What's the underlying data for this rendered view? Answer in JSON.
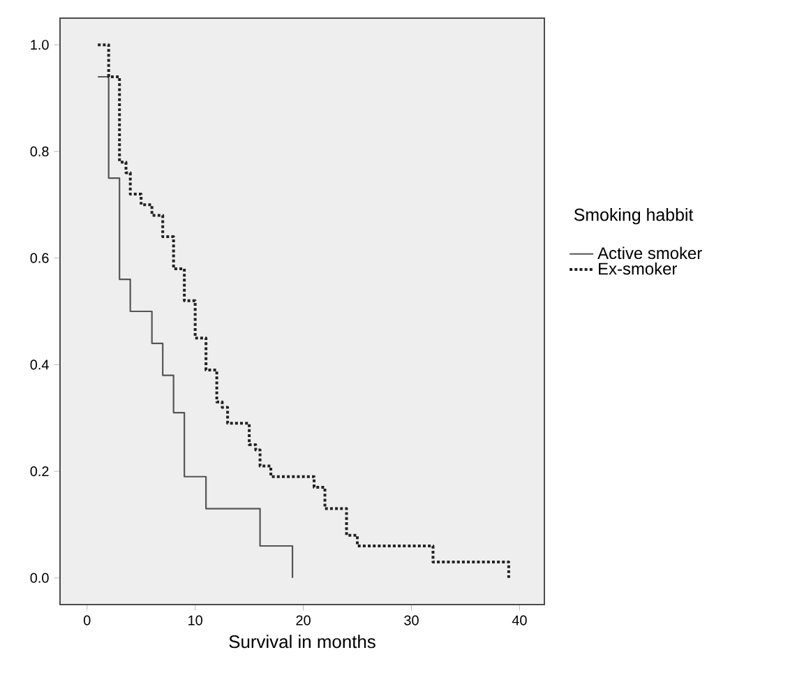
{
  "chart_data": {
    "type": "step",
    "xlabel": "Survival in months",
    "legend_title": "Smoking habbit",
    "legend": "right",
    "grid": false,
    "xlim": [
      -2.5,
      42.3
    ],
    "ylim": [
      -0.05,
      1.05
    ],
    "xticks": [
      0,
      10,
      20,
      30,
      40
    ],
    "yticks": [
      {
        "value": 0,
        "label": "0.0"
      },
      {
        "value": 0.2,
        "label": "0.2"
      },
      {
        "value": 0.4,
        "label": "0.4"
      },
      {
        "value": 0.6,
        "label": "0.6"
      },
      {
        "value": 0.8,
        "label": "0.8"
      },
      {
        "value": 1,
        "label": "1.0"
      }
    ],
    "series": [
      {
        "name": "Active smoker",
        "color": "#555555",
        "line_style": "solid",
        "x": [
          1,
          2,
          3,
          4,
          6,
          7,
          8,
          9,
          11,
          16,
          19
        ],
        "values": [
          0.94,
          0.75,
          0.56,
          0.5,
          0.44,
          0.38,
          0.31,
          0.19,
          0.13,
          0.06,
          0
        ]
      },
      {
        "name": "Ex-smoker",
        "color": "#222222",
        "line_style": "dotted",
        "x": [
          1,
          2,
          3,
          3.6,
          4,
          5,
          6,
          7,
          8,
          9,
          10,
          11,
          12,
          12.5,
          13,
          15,
          15.6,
          16,
          17,
          21,
          22,
          24,
          25,
          32,
          39
        ],
        "values": [
          1,
          0.94,
          0.78,
          0.76,
          0.72,
          0.7,
          0.68,
          0.64,
          0.58,
          0.52,
          0.45,
          0.39,
          0.33,
          0.32,
          0.29,
          0.25,
          0.24,
          0.21,
          0.19,
          0.17,
          0.13,
          0.08,
          0.06,
          0.03,
          0
        ]
      }
    ]
  }
}
